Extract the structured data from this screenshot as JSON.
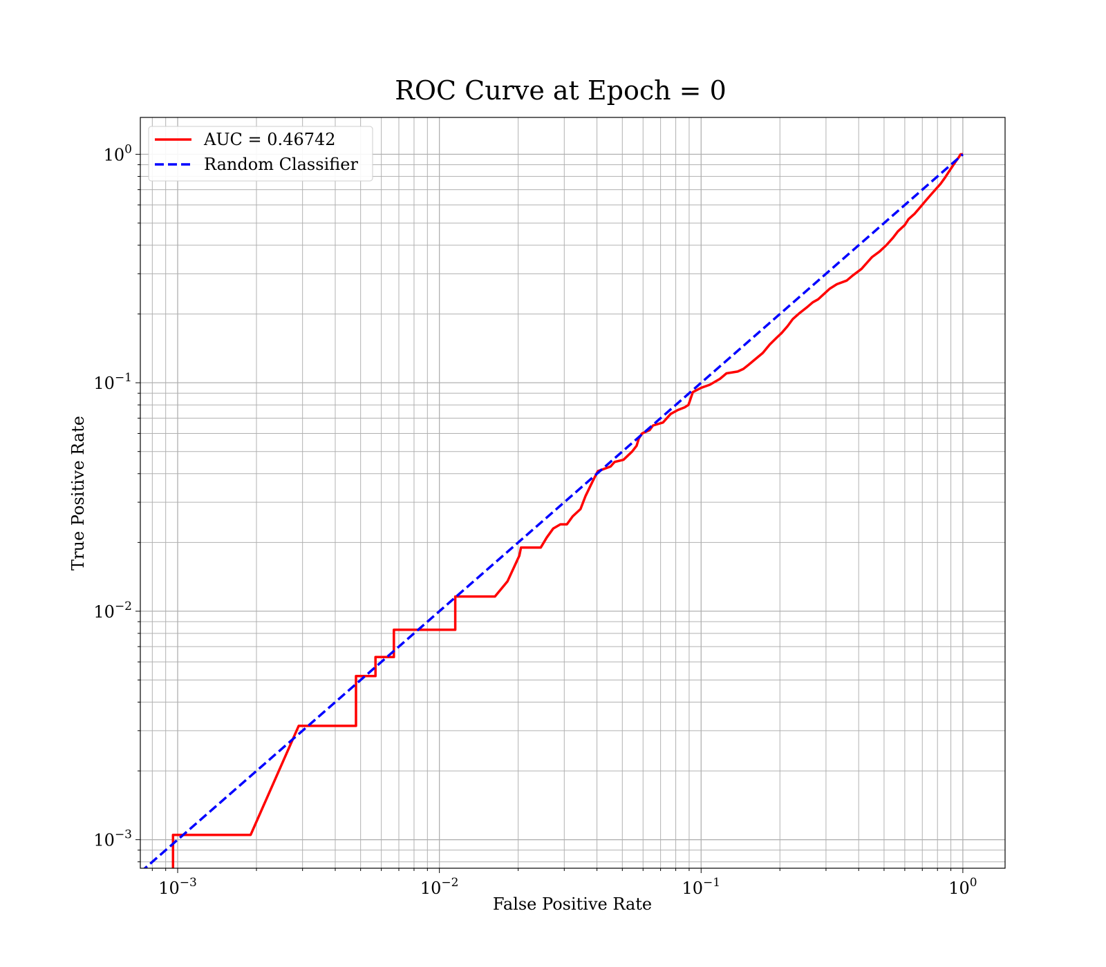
{
  "chart_data": {
    "type": "line",
    "title": "ROC Curve at Epoch = 0",
    "xlabel": "False Positive Rate",
    "ylabel": "True Positive Rate",
    "xscale": "log",
    "yscale": "log",
    "xlim": [
      0.00072,
      1.45
    ],
    "ylim": [
      0.00075,
      1.45
    ],
    "grid": "both major and minor",
    "legend_placement": "top-left",
    "xticks": [
      {
        "base": "10",
        "exp": "−3",
        "value": 0.001
      },
      {
        "base": "10",
        "exp": "−2",
        "value": 0.01
      },
      {
        "base": "10",
        "exp": "−1",
        "value": 0.1
      },
      {
        "base": "10",
        "exp": "0",
        "value": 1
      }
    ],
    "yticks": [
      {
        "base": "10",
        "exp": "−3",
        "value": 0.001
      },
      {
        "base": "10",
        "exp": "−2",
        "value": 0.01
      },
      {
        "base": "10",
        "exp": "−1",
        "value": 0.1
      },
      {
        "base": "10",
        "exp": "0",
        "value": 1
      }
    ],
    "series": [
      {
        "name": "AUC = 0.46742",
        "color": "#ff0000",
        "style": "solid",
        "points": [
          [
            0.00096,
            0.0007
          ],
          [
            0.00096,
            0.00105
          ],
          [
            0.0019,
            0.00105
          ],
          [
            0.0029,
            0.00315
          ],
          [
            0.0048,
            0.00315
          ],
          [
            0.0048,
            0.0052
          ],
          [
            0.0057,
            0.0052
          ],
          [
            0.0057,
            0.0063
          ],
          [
            0.0067,
            0.0063
          ],
          [
            0.0067,
            0.0083
          ],
          [
            0.0115,
            0.0083
          ],
          [
            0.0115,
            0.0116
          ],
          [
            0.0163,
            0.0116
          ],
          [
            0.0182,
            0.0135
          ],
          [
            0.0202,
            0.0175
          ],
          [
            0.0205,
            0.019
          ],
          [
            0.0244,
            0.019
          ],
          [
            0.0257,
            0.021
          ],
          [
            0.0272,
            0.023
          ],
          [
            0.029,
            0.024
          ],
          [
            0.0307,
            0.024
          ],
          [
            0.0323,
            0.026
          ],
          [
            0.0346,
            0.028
          ],
          [
            0.0362,
            0.032
          ],
          [
            0.0385,
            0.037
          ],
          [
            0.0403,
            0.041
          ],
          [
            0.0451,
            0.043
          ],
          [
            0.0467,
            0.045
          ],
          [
            0.0505,
            0.046
          ],
          [
            0.0545,
            0.05
          ],
          [
            0.0567,
            0.053
          ],
          [
            0.0578,
            0.057
          ],
          [
            0.0595,
            0.06
          ],
          [
            0.0635,
            0.062
          ],
          [
            0.0655,
            0.065
          ],
          [
            0.0715,
            0.067
          ],
          [
            0.0765,
            0.073
          ],
          [
            0.0815,
            0.076
          ],
          [
            0.0865,
            0.078
          ],
          [
            0.0895,
            0.08
          ],
          [
            0.093,
            0.091
          ],
          [
            0.1,
            0.095
          ],
          [
            0.108,
            0.098
          ],
          [
            0.118,
            0.104
          ],
          [
            0.125,
            0.11
          ],
          [
            0.138,
            0.112
          ],
          [
            0.145,
            0.115
          ],
          [
            0.152,
            0.12
          ],
          [
            0.16,
            0.126
          ],
          [
            0.172,
            0.135
          ],
          [
            0.183,
            0.147
          ],
          [
            0.195,
            0.158
          ],
          [
            0.203,
            0.165
          ],
          [
            0.214,
            0.177
          ],
          [
            0.224,
            0.19
          ],
          [
            0.238,
            0.202
          ],
          [
            0.255,
            0.215
          ],
          [
            0.267,
            0.225
          ],
          [
            0.28,
            0.232
          ],
          [
            0.295,
            0.245
          ],
          [
            0.31,
            0.258
          ],
          [
            0.33,
            0.27
          ],
          [
            0.36,
            0.28
          ],
          [
            0.38,
            0.295
          ],
          [
            0.41,
            0.315
          ],
          [
            0.43,
            0.335
          ],
          [
            0.45,
            0.355
          ],
          [
            0.48,
            0.375
          ],
          [
            0.51,
            0.4
          ],
          [
            0.54,
            0.43
          ],
          [
            0.565,
            0.46
          ],
          [
            0.6,
            0.49
          ],
          [
            0.62,
            0.52
          ],
          [
            0.655,
            0.55
          ],
          [
            0.69,
            0.59
          ],
          [
            0.72,
            0.625
          ],
          [
            0.75,
            0.66
          ],
          [
            0.785,
            0.7
          ],
          [
            0.82,
            0.74
          ],
          [
            0.855,
            0.79
          ],
          [
            0.885,
            0.84
          ],
          [
            0.915,
            0.89
          ],
          [
            0.945,
            0.94
          ],
          [
            0.965,
            0.97
          ],
          [
            0.98,
            1.0
          ],
          [
            1.0,
            1.0
          ]
        ]
      },
      {
        "name": "Random Classifier",
        "color": "#0000ff",
        "style": "dashed",
        "points": [
          [
            0.00072,
            0.00072
          ],
          [
            1.0,
            1.0
          ]
        ]
      }
    ]
  }
}
